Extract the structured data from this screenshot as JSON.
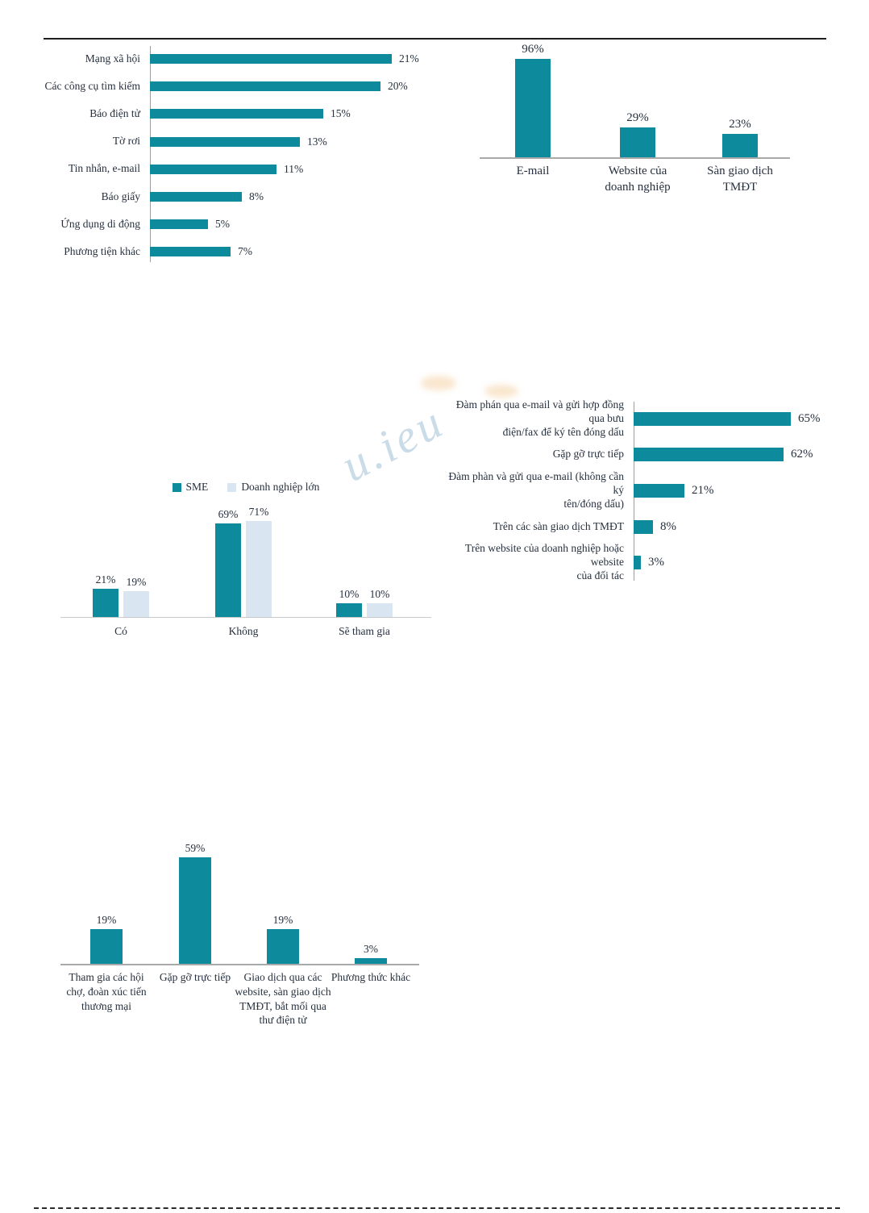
{
  "page": {
    "background": "#ffffff",
    "watermark_text": "u.ieu",
    "colors": {
      "teal": "#0d8a9b",
      "light_blue": "#d9e6f1",
      "text": "#26303e",
      "axis_gray": "#a9a9a9"
    }
  },
  "chart_data": [
    {
      "id": "online-ad-channels",
      "type": "bar",
      "orientation": "horizontal",
      "title": "",
      "categories": [
        "Mạng xã hội",
        "Các công cụ tìm kiếm",
        "Báo điện tử",
        "Tờ rơi",
        "Tin nhắn, e-mail",
        "Báo giấy",
        "Ứng dụng di động",
        "Phương tiện khác"
      ],
      "values": [
        21,
        20,
        15,
        13,
        11,
        8,
        5,
        7
      ],
      "value_labels": [
        "21%",
        "20%",
        "15%",
        "13%",
        "11%",
        "8%",
        "5%",
        "7%"
      ],
      "xlim": [
        0,
        23
      ],
      "grid": false,
      "bar_color": "#0d8a9b"
    },
    {
      "id": "order-receiving-channels",
      "type": "bar",
      "orientation": "vertical",
      "title": "",
      "categories": [
        "E-mail",
        "Website của\ndoanh nghiệp",
        "Sàn giao dịch\nTMĐT"
      ],
      "values": [
        96,
        29,
        23
      ],
      "value_labels": [
        "96%",
        "29%",
        "23%"
      ],
      "ylim": [
        0,
        100
      ],
      "grid": false,
      "bar_color": "#0d8a9b"
    },
    {
      "id": "participation-sme-vs-large",
      "type": "bar",
      "orientation": "vertical",
      "title": "",
      "categories": [
        "Có",
        "Không",
        "Sẽ tham gia"
      ],
      "series": [
        {
          "name": "SME",
          "color": "#0d8a9b",
          "values": [
            21,
            69,
            10
          ],
          "value_labels": [
            "21%",
            "69%",
            "10%"
          ]
        },
        {
          "name": "Doanh nghiệp lớn",
          "color": "#d9e6f1",
          "values": [
            19,
            71,
            10
          ],
          "value_labels": [
            "19%",
            "71%",
            "10%"
          ]
        }
      ],
      "legend_position": "top",
      "ylim": [
        0,
        80
      ],
      "grid": false
    },
    {
      "id": "contract-signing-methods",
      "type": "bar",
      "orientation": "horizontal",
      "title": "",
      "categories": [
        "Đàm phán qua e-mail và gửi hợp đồng qua bưu\nđiện/fax để ký tên đóng dấu",
        "Gặp gỡ trực tiếp",
        "Đàm phàn và gửi qua e-mail (không cần ký\ntên/đóng dấu)",
        "Trên các sàn giao dịch TMĐT",
        "Trên website của doanh nghiệp hoặc website\ncủa đối tác"
      ],
      "values": [
        65,
        62,
        21,
        8,
        3
      ],
      "value_labels": [
        "65%",
        "62%",
        "21%",
        "8%",
        "3%"
      ],
      "xlim": [
        0,
        70
      ],
      "grid": false,
      "bar_color": "#0d8a9b"
    },
    {
      "id": "partner-finding-methods",
      "type": "bar",
      "orientation": "vertical",
      "title": "",
      "categories": [
        "Tham gia các hội\nchợ, đoàn xúc tiến\nthương mại",
        "Gặp gỡ trực tiếp",
        "Giao dịch qua các\nwebsite, sàn giao dịch\nTMĐT, bắt mối qua\nthư điện tử",
        "Phương thức khác"
      ],
      "values": [
        19,
        59,
        19,
        3
      ],
      "value_labels": [
        "19%",
        "59%",
        "19%",
        "3%"
      ],
      "ylim": [
        0,
        65
      ],
      "grid": false,
      "bar_color": "#0d8a9b"
    }
  ]
}
